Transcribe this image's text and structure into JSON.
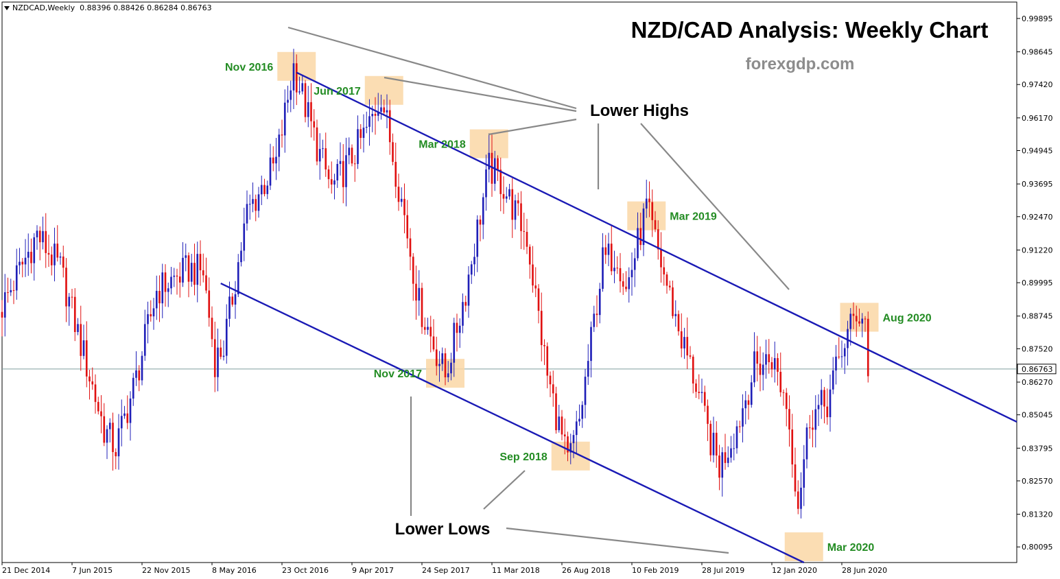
{
  "header": {
    "symbol_timeframe": "NZDCAD,Weekly",
    "ohlc": "0.88396 0.88426 0.86284 0.86763"
  },
  "chart_data": {
    "type": "candlestick",
    "title": "NZD/CAD Analysis: Weekly Chart",
    "subtitle": "forexgdp.com",
    "ylim": [
      0.7951,
      1.0051
    ],
    "y_ticks": [
      "0.99895",
      "0.98645",
      "0.97420",
      "0.96170",
      "0.94945",
      "0.93695",
      "0.92470",
      "0.91220",
      "0.89995",
      "0.88745",
      "0.87520",
      "0.86270",
      "0.85045",
      "0.83795",
      "0.82570",
      "0.81320",
      "0.80095"
    ],
    "current_price": "0.86763",
    "x_ticks": [
      "21 Dec 2014",
      "7 Jun 2015",
      "22 Nov 2015",
      "8 May 2016",
      "23 Oct 2016",
      "9 Apr 2017",
      "24 Sep 2017",
      "11 Mar 2018",
      "26 Aug 2018",
      "10 Feb 2019",
      "28 Jul 2019",
      "12 Jan 2020",
      "28 Jun 2020"
    ],
    "start_date": "2014-12-21",
    "end_date": "2020-08-30",
    "x_axis_end_date": "2021-08-22",
    "anchors": [
      [
        "2014-12-21",
        0.891
      ],
      [
        "2015-03-15",
        0.918
      ],
      [
        "2015-05-10",
        0.905
      ],
      [
        "2015-08-23",
        0.845
      ],
      [
        "2015-09-20",
        0.838
      ],
      [
        "2015-11-08",
        0.864
      ],
      [
        "2015-12-27",
        0.897
      ],
      [
        "2016-03-13",
        0.905
      ],
      [
        "2016-04-17",
        0.904
      ],
      [
        "2016-05-15",
        0.871
      ],
      [
        "2016-06-05",
        0.876
      ],
      [
        "2016-07-31",
        0.926
      ],
      [
        "2016-10-09",
        0.945
      ],
      [
        "2016-11-20",
        0.981
      ],
      [
        "2017-01-15",
        0.951
      ],
      [
        "2017-02-19",
        0.935
      ],
      [
        "2017-04-09",
        0.947
      ],
      [
        "2017-05-21",
        0.959
      ],
      [
        "2017-06-18",
        0.971
      ],
      [
        "2017-08-13",
        0.925
      ],
      [
        "2017-09-17",
        0.892
      ],
      [
        "2017-11-19",
        0.865
      ],
      [
        "2018-01-07",
        0.897
      ],
      [
        "2018-03-04",
        0.943
      ],
      [
        "2018-04-01",
        0.938
      ],
      [
        "2018-06-03",
        0.917
      ],
      [
        "2018-07-22",
        0.865
      ],
      [
        "2018-09-09",
        0.832
      ],
      [
        "2018-10-07",
        0.848
      ],
      [
        "2018-12-02",
        0.908
      ],
      [
        "2019-01-06",
        0.911
      ],
      [
        "2019-01-27",
        0.897
      ],
      [
        "2019-03-17",
        0.928
      ],
      [
        "2019-04-28",
        0.903
      ],
      [
        "2019-06-09",
        0.879
      ],
      [
        "2019-07-14",
        0.862
      ],
      [
        "2019-08-11",
        0.844
      ],
      [
        "2019-09-08",
        0.831
      ],
      [
        "2019-10-20",
        0.846
      ],
      [
        "2019-12-01",
        0.868
      ],
      [
        "2020-01-12",
        0.872
      ],
      [
        "2020-02-16",
        0.855
      ],
      [
        "2020-03-15",
        0.818
      ],
      [
        "2020-04-12",
        0.85
      ],
      [
        "2020-05-24",
        0.855
      ],
      [
        "2020-06-28",
        0.875
      ],
      [
        "2020-08-02",
        0.889
      ],
      [
        "2020-08-23",
        0.886
      ],
      [
        "2020-08-30",
        0.868
      ]
    ],
    "trendlines": [
      {
        "name": "upper-trendline",
        "points": [
          [
            "2016-11-27",
            0.9787
          ],
          [
            "2021-08-22",
            0.8478
          ]
        ]
      },
      {
        "name": "lower-trendline",
        "points": [
          [
            "2016-05-29",
            0.8997
          ],
          [
            "2020-03-29",
            0.7951
          ]
        ]
      }
    ],
    "highlighted_points": [
      {
        "label": "Nov 2016",
        "date": "2016-11-27",
        "price": 0.981,
        "label_side": "left"
      },
      {
        "label": "Jun 2017",
        "date": "2017-06-25",
        "price": 0.972,
        "label_side": "left"
      },
      {
        "label": "Mar 2018",
        "date": "2018-03-04",
        "price": 0.952,
        "label_side": "left"
      },
      {
        "label": "Mar 2019",
        "date": "2019-03-17",
        "price": 0.925,
        "label_side": "right"
      },
      {
        "label": "Aug 2020",
        "date": "2020-08-09",
        "price": 0.887,
        "label_side": "right"
      },
      {
        "label": "Nov 2017",
        "date": "2017-11-19",
        "price": 0.866,
        "label_side": "left"
      },
      {
        "label": "Sep 2018",
        "date": "2018-09-16",
        "price": 0.835,
        "label_side": "left"
      },
      {
        "label": "Mar 2020",
        "date": "2020-03-29",
        "price": 0.801,
        "label_side": "right"
      }
    ],
    "annotations": [
      {
        "label": "Lower Highs",
        "connects_to": [
          "Nov 2016",
          "Jun 2017",
          "Mar 2018",
          "Mar 2019",
          "Aug 2020"
        ]
      },
      {
        "label": "Lower Lows",
        "connects_to": [
          "Nov 2017",
          "Sep 2018",
          "Mar 2020"
        ]
      }
    ],
    "colors": {
      "bull": "#1f1fb8",
      "bear": "#e01010",
      "trendline": "#1a1ab5",
      "highlight": "#fad7a6",
      "label": "#238c23",
      "connector": "#888888",
      "current_line": "#7f9f9f"
    }
  }
}
